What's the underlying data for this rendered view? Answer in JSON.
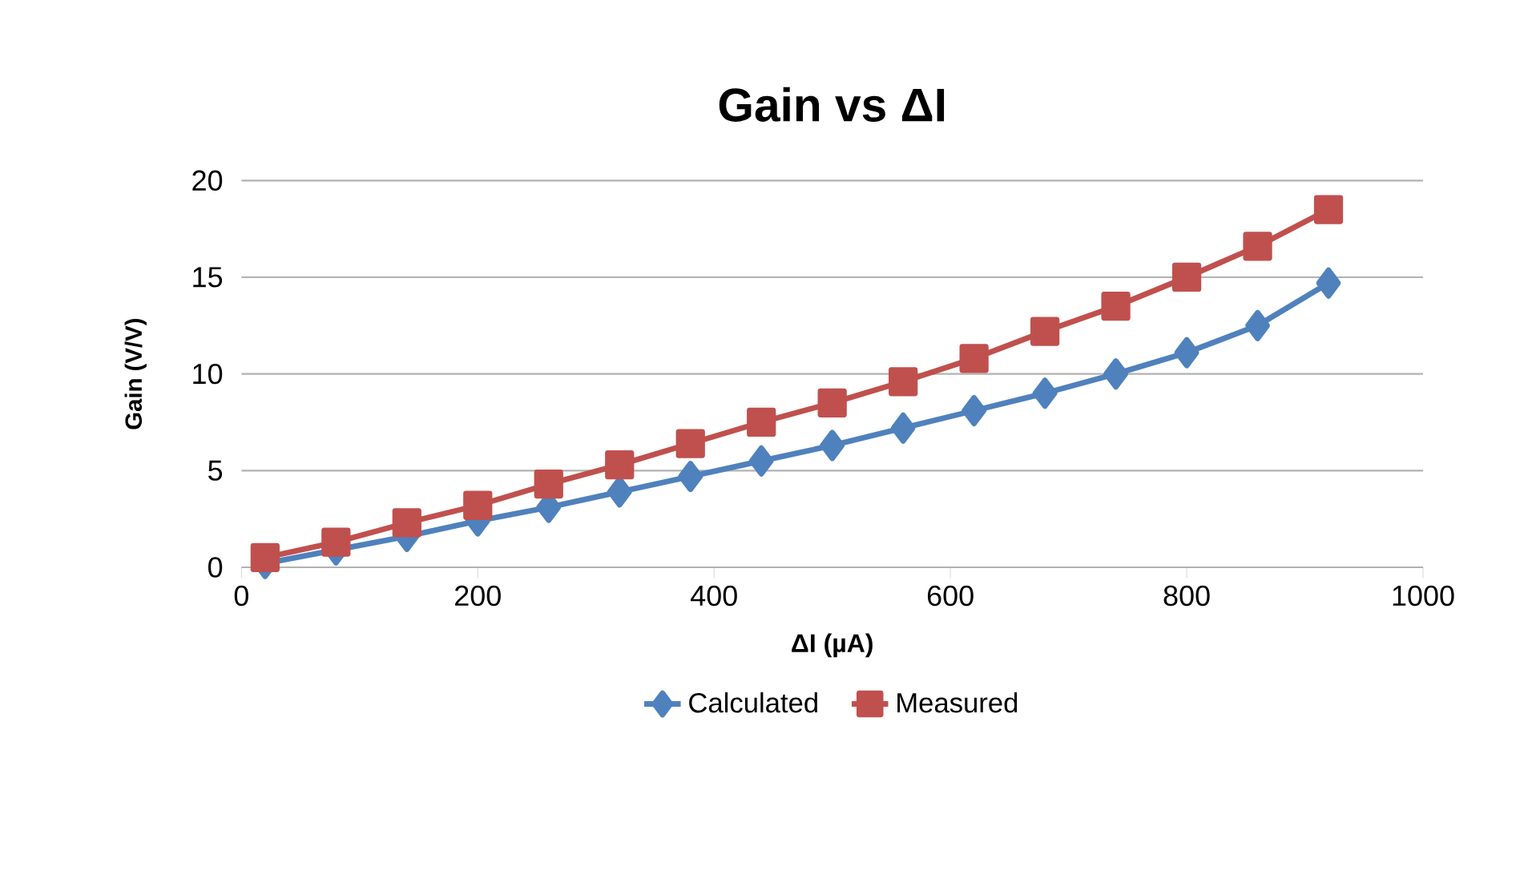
{
  "chart_data": {
    "type": "line",
    "title": "Gain vs ΔI",
    "xlabel": "ΔI (µA)",
    "ylabel": "Gain (V/V)",
    "x": [
      20,
      80,
      140,
      200,
      260,
      320,
      380,
      440,
      500,
      560,
      620,
      680,
      740,
      800,
      860,
      920
    ],
    "series": [
      {
        "name": "Calculated",
        "color": "#4f81bd",
        "marker": "diamond",
        "values": [
          0.2,
          0.9,
          1.6,
          2.4,
          3.1,
          3.9,
          4.7,
          5.5,
          6.3,
          7.2,
          8.1,
          9.0,
          10.0,
          11.1,
          12.5,
          14.7
        ]
      },
      {
        "name": "Measured",
        "color": "#c0504d",
        "marker": "square",
        "values": [
          0.5,
          1.3,
          2.3,
          3.2,
          4.3,
          5.3,
          6.4,
          7.5,
          8.5,
          9.6,
          10.8,
          12.2,
          13.5,
          15.0,
          16.6,
          18.5
        ]
      }
    ],
    "xlim": [
      0,
      1000
    ],
    "xticks": [
      0,
      200,
      400,
      600,
      800,
      1000
    ],
    "ylim": [
      0,
      20
    ],
    "yticks": [
      0,
      5,
      10,
      15,
      20
    ],
    "grid": "y",
    "legend": "bottom",
    "line_style": "solid"
  }
}
